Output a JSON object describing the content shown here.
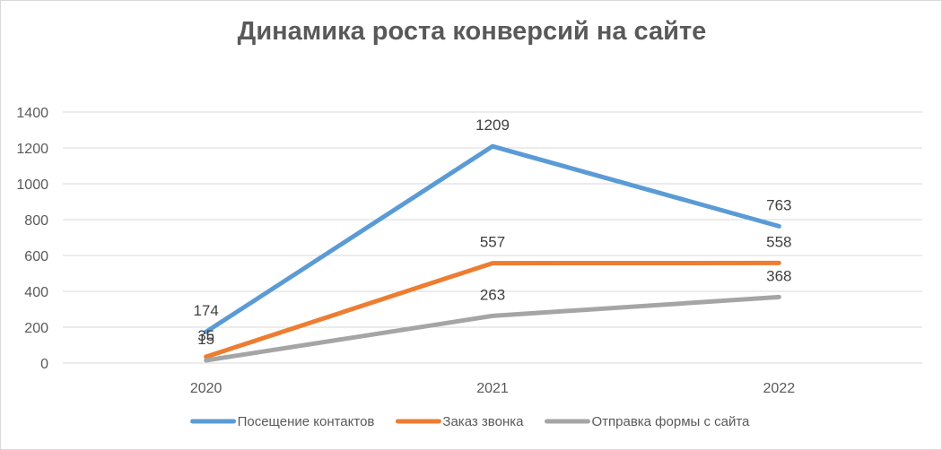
{
  "chart_data": {
    "type": "line",
    "title": "Динамика роста конверсий на сайте",
    "categories": [
      "2020",
      "2021",
      "2022"
    ],
    "ylim": [
      0,
      1400
    ],
    "yticks": [
      0,
      200,
      400,
      600,
      800,
      1000,
      1200,
      1400
    ],
    "grid": true,
    "legend_position": "bottom",
    "series": [
      {
        "name": "Посещение контактов",
        "values": [
          174,
          1209,
          763
        ],
        "color": "#5b9bd5"
      },
      {
        "name": "Заказ звонка",
        "values": [
          35,
          557,
          558
        ],
        "color": "#ed7d31"
      },
      {
        "name": "Отправка формы с сайта",
        "values": [
          15,
          263,
          368
        ],
        "color": "#a5a5a5"
      }
    ]
  }
}
